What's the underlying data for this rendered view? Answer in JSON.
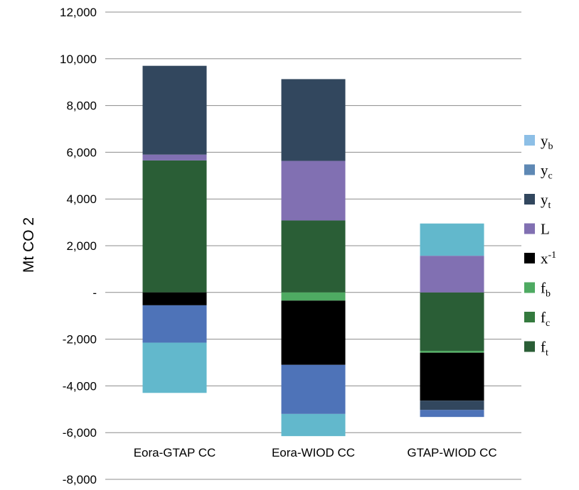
{
  "chart_data": {
    "type": "bar",
    "stacked": true,
    "title": "",
    "xlabel": "",
    "ylabel": "Mt CO 2",
    "ylim": [
      -8000,
      12000
    ],
    "ytick_step": 2000,
    "ytick_labels": [
      "-8,000",
      "-6,000",
      "-4,000",
      "-2,000",
      "-",
      "2,000",
      "4,000",
      "6,000",
      "8,000",
      "10,000",
      "12,000"
    ],
    "grid": true,
    "legend_position": "right",
    "categories": [
      "Eora-GTAP CC",
      "Eora-WIOD CC",
      "GTAP-WIOD CC"
    ],
    "series": [
      {
        "key": "y_b",
        "base": "y",
        "sub": "b",
        "color": "#62b8cc",
        "legend_color": "#8dbfe6",
        "values": [
          -2150,
          -950,
          1380
        ]
      },
      {
        "key": "y_c",
        "base": "y",
        "sub": "c",
        "color": "#4e73b8",
        "legend_color": "#5e88b4",
        "values": [
          -1600,
          -2100,
          -300
        ]
      },
      {
        "key": "y_t",
        "base": "y",
        "sub": "t",
        "color": "#32475e",
        "legend_color": "#32475e",
        "values": [
          3800,
          3500,
          -400
        ]
      },
      {
        "key": "L",
        "base": "L",
        "sub": "",
        "color": "#8170b2",
        "legend_color": "#8170b2",
        "values": [
          250,
          2550,
          1570
        ]
      },
      {
        "key": "x_inv",
        "base": "x",
        "sup": "-1",
        "color": "#000000",
        "legend_color": "#000000",
        "values": [
          -550,
          -2750,
          -2050
        ]
      },
      {
        "key": "f_b",
        "base": "f",
        "sub": "b",
        "color": "#4eaa62",
        "legend_color": "#4eaa62",
        "values": [
          0,
          -350,
          -80
        ]
      },
      {
        "key": "f_c",
        "base": "f",
        "sub": "c",
        "color": "#347a3e",
        "legend_color": "#347a3e",
        "values": [
          0,
          0,
          0
        ]
      },
      {
        "key": "f_t",
        "base": "f",
        "sub": "t",
        "color": "#2a5e36",
        "legend_color": "#2a5e36",
        "values": [
          5650,
          3080,
          -2500
        ]
      }
    ],
    "stack_order": [
      "f_t",
      "f_c",
      "f_b",
      "x_inv",
      "L",
      "y_t",
      "y_c",
      "y_b"
    ]
  }
}
